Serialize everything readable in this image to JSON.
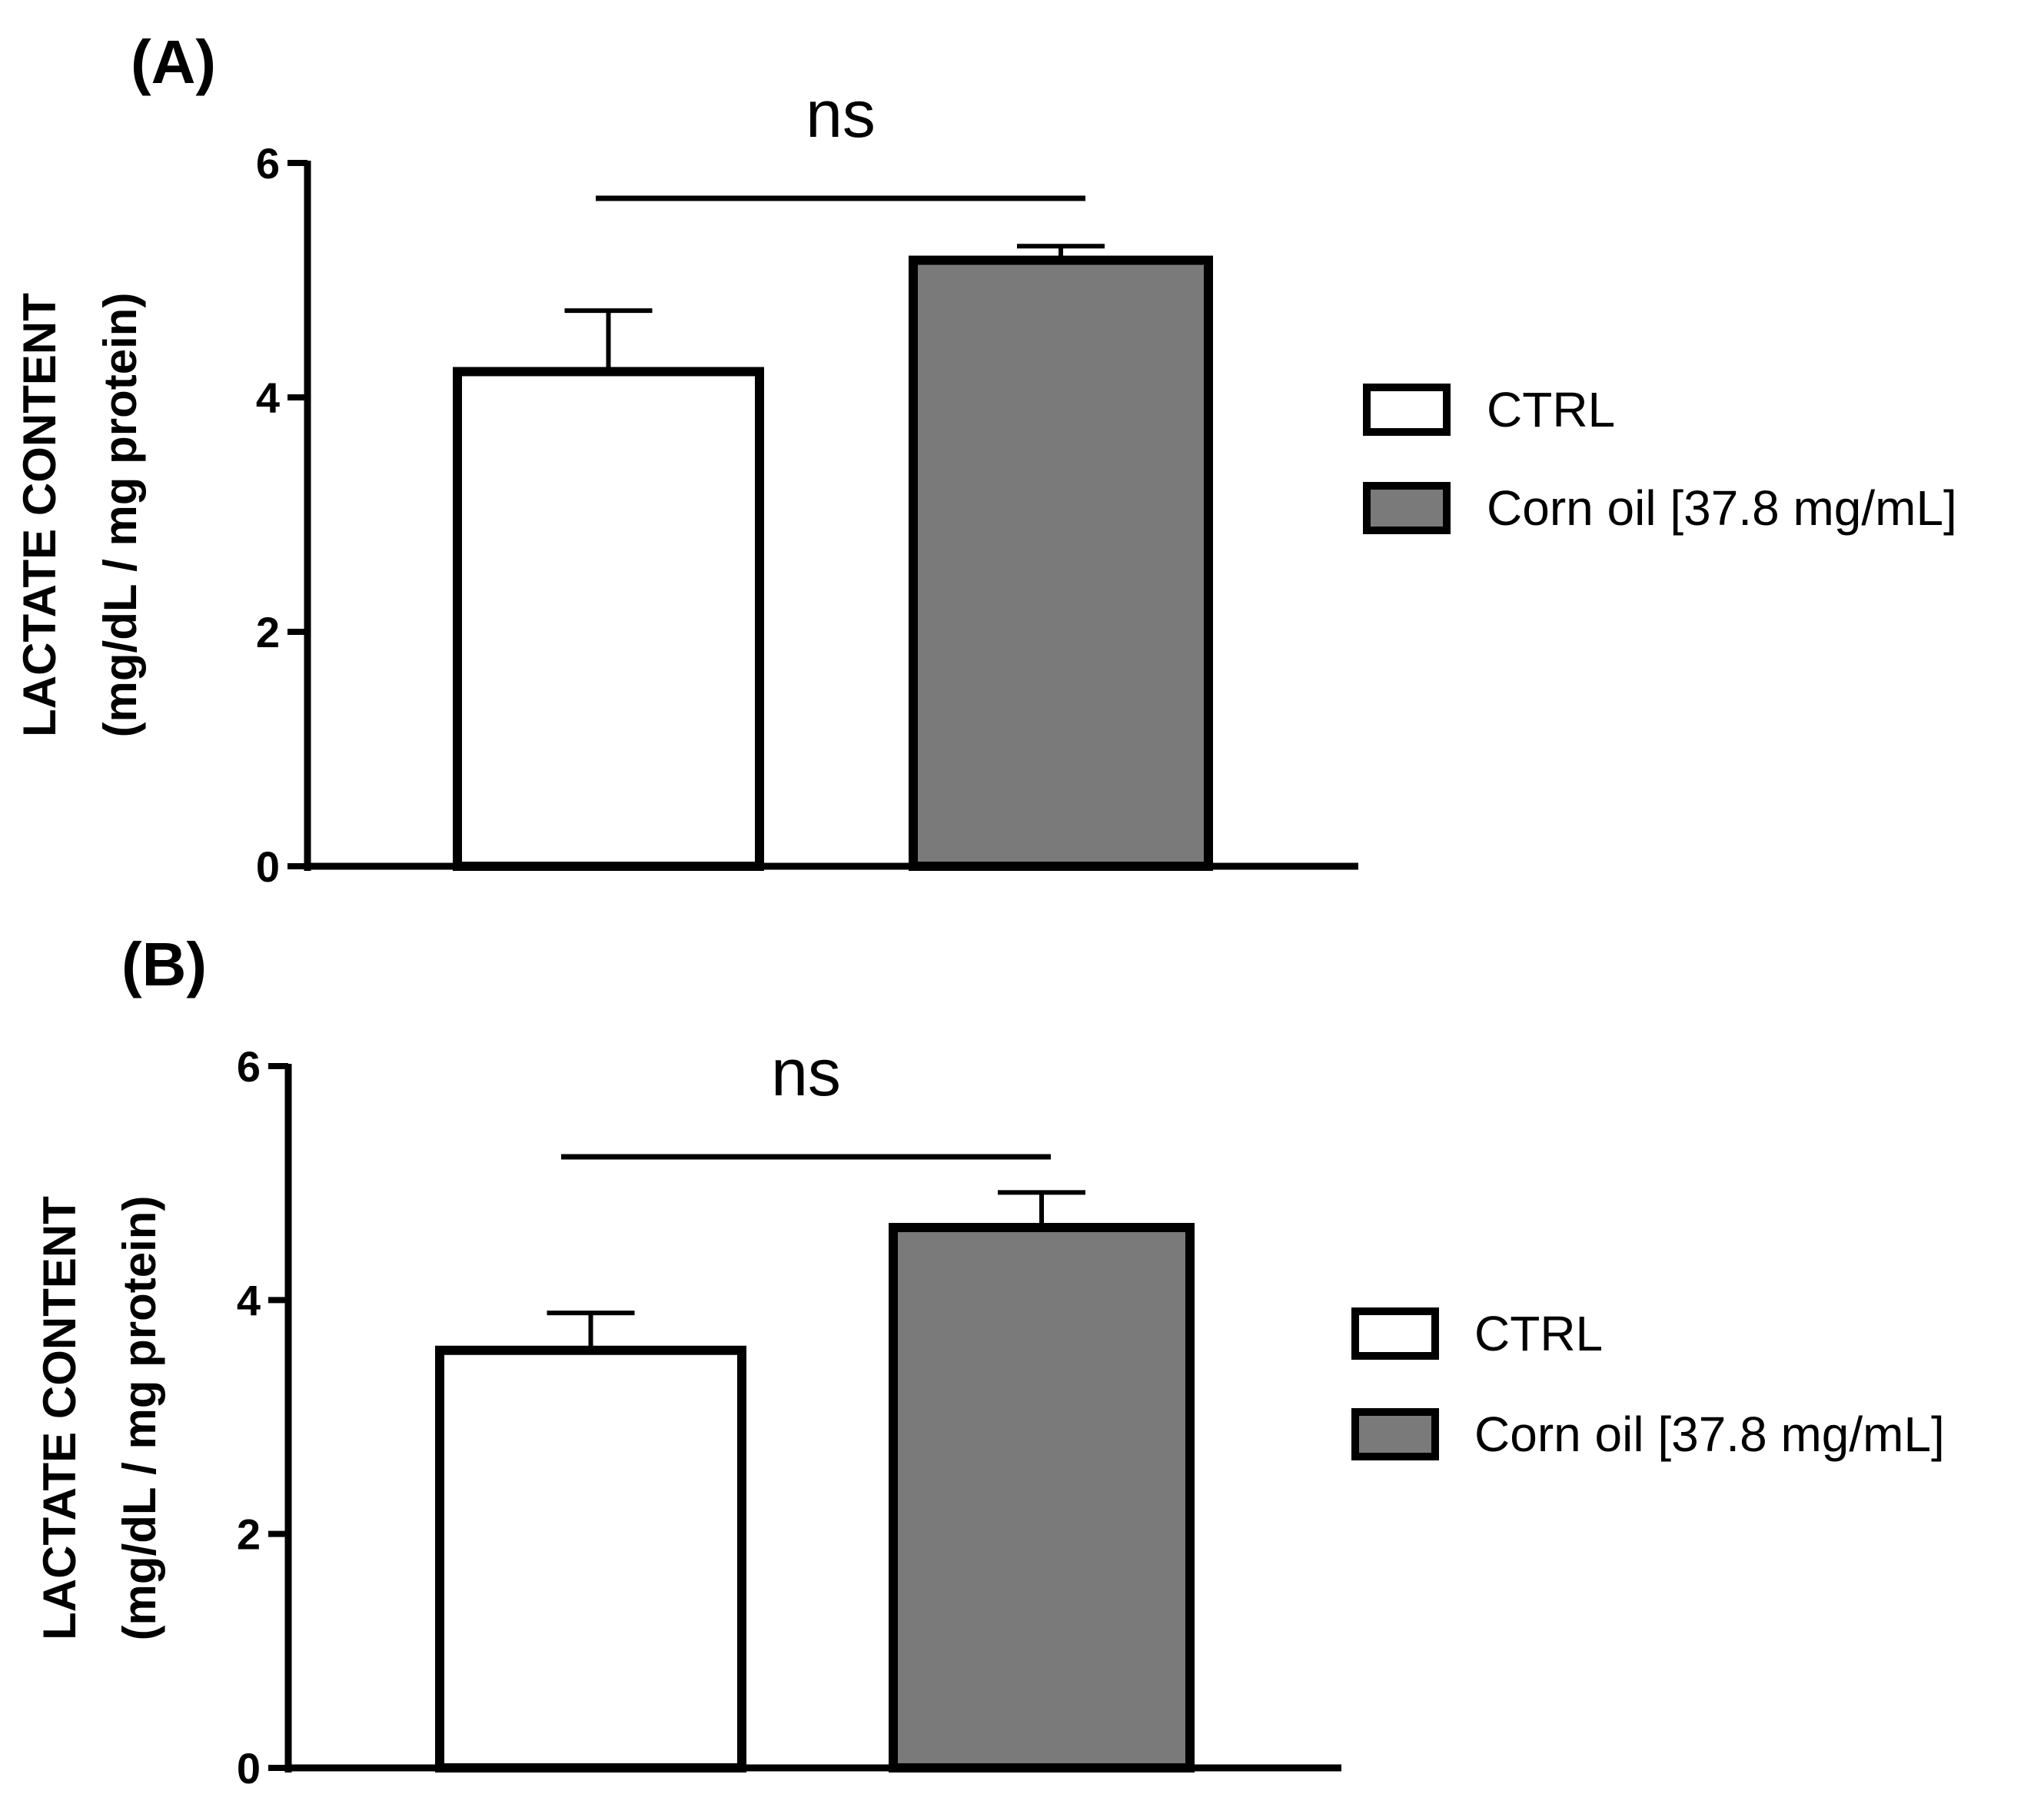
{
  "chart_data": [
    {
      "panel": "(A)",
      "type": "bar",
      "categories": [
        "CTRL",
        "Corn oil [37.8 mg/mL]"
      ],
      "values": [
        4.22,
        5.17
      ],
      "errors": [
        0.52,
        0.12
      ],
      "ylabel": [
        "LACTATE CONTENT",
        "(mg/dL / mg protein)"
      ],
      "ylim": [
        0,
        6
      ],
      "yticks": [
        0,
        2,
        4,
        6
      ],
      "yticks_labels": [
        "0",
        "2",
        "4",
        "6"
      ],
      "significance": "ns",
      "legend": {
        "position": "right",
        "entries": [
          "CTRL",
          "Corn oil [37.8 mg/mL]"
        ]
      },
      "colors": [
        "#ffffff",
        "#7a7a7a"
      ]
    },
    {
      "panel": "(B)",
      "type": "bar",
      "categories": [
        "CTRL",
        "Corn oil [37.8 mg/mL]"
      ],
      "values": [
        3.57,
        4.62
      ],
      "errors": [
        0.32,
        0.3
      ],
      "ylabel": [
        "LACTATE CONTENT",
        "(mg/dL / mg protein)"
      ],
      "ylim": [
        0,
        6
      ],
      "yticks": [
        0,
        2,
        4,
        6
      ],
      "yticks_labels": [
        "0",
        "2",
        "4",
        "6"
      ],
      "significance": "ns",
      "legend": {
        "position": "right",
        "entries": [
          "CTRL",
          "Corn oil [37.8 mg/mL]"
        ]
      },
      "colors": [
        "#ffffff",
        "#7a7a7a"
      ]
    }
  ]
}
